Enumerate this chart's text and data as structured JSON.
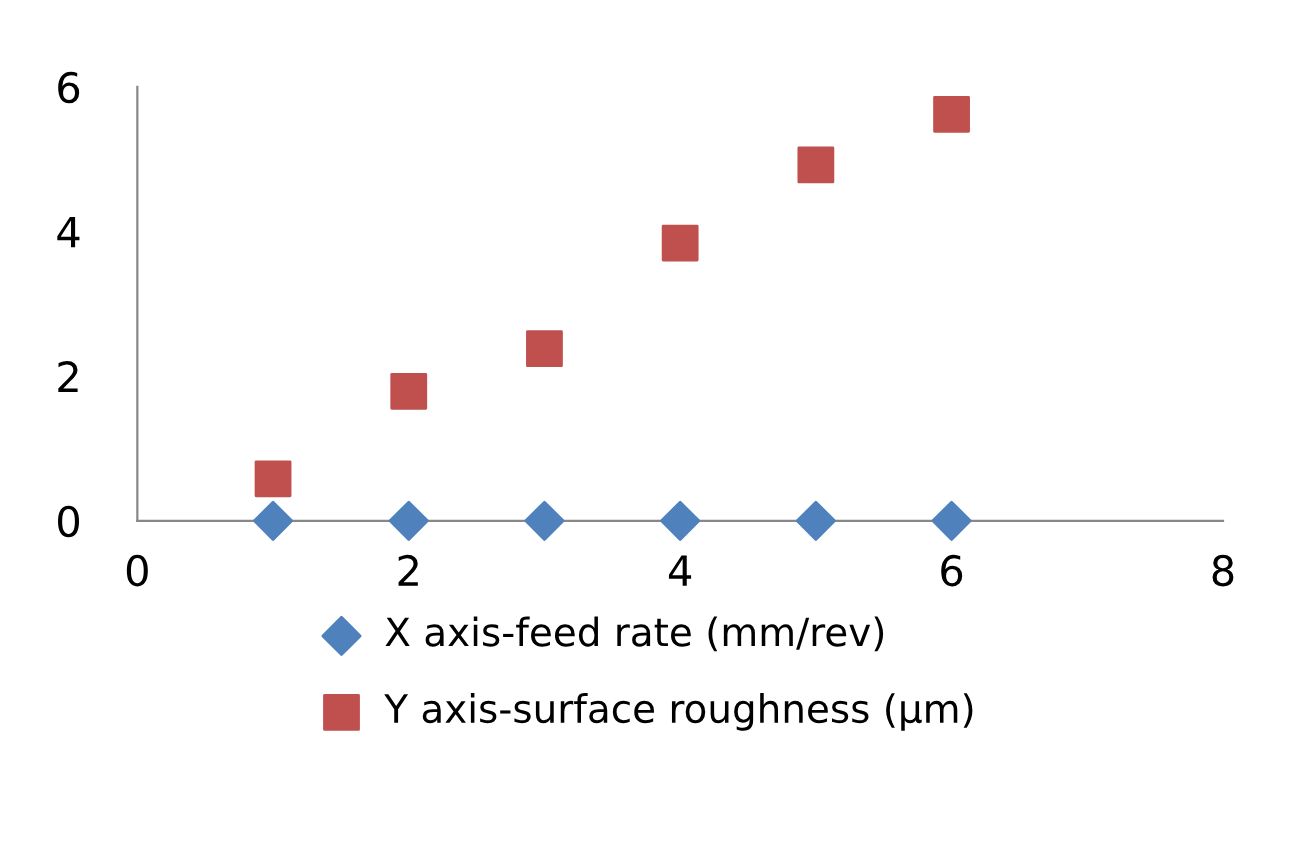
{
  "chart_data": {
    "type": "scatter",
    "xlim": [
      0,
      8
    ],
    "xticks": [
      0,
      2,
      4,
      6,
      8
    ],
    "ylim": [
      0,
      6
    ],
    "yticks": [
      0,
      2,
      4,
      6
    ],
    "grid": false,
    "legend": "bottom",
    "x": [
      1,
      2,
      3,
      4,
      5,
      6
    ],
    "series": [
      {
        "name": "X axis-feed rate (mm/rev)",
        "color": "#4f81bd",
        "marker": "diamond",
        "values": [
          0,
          0,
          0,
          0,
          0,
          0
        ]
      },
      {
        "name": "Y axis-surface roughness (µm)",
        "color": "#c0504d",
        "marker": "square",
        "values": [
          0.58,
          1.79,
          2.38,
          3.84,
          4.92,
          5.62
        ]
      }
    ]
  }
}
